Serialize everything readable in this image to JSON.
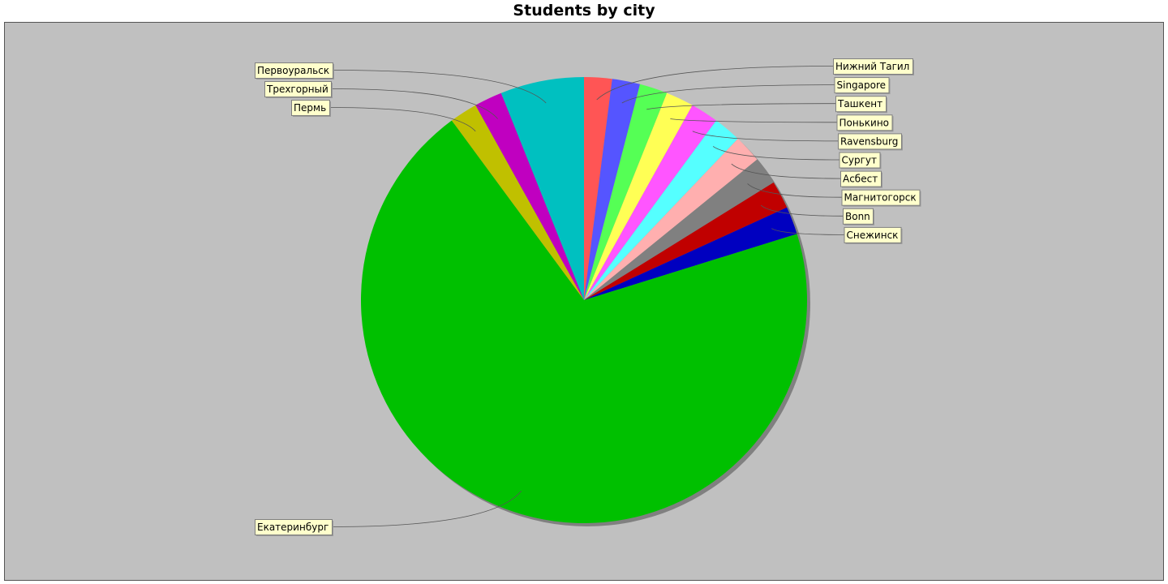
{
  "chart_data": {
    "type": "pie",
    "title": "Students by city",
    "legend": "none",
    "plot_background": "#c0c0c0",
    "label_background": "#ffffcc",
    "slices": [
      {
        "label": "Нижний Тагил",
        "value": 2,
        "color": "#ff5555"
      },
      {
        "label": "Singapore",
        "value": 2,
        "color": "#5555ff"
      },
      {
        "label": "Ташкент",
        "value": 2,
        "color": "#55ff55"
      },
      {
        "label": "Понькино",
        "value": 2,
        "color": "#ffff55"
      },
      {
        "label": "Ravensburg",
        "value": 2,
        "color": "#ff55ff"
      },
      {
        "label": "Сургут",
        "value": 2,
        "color": "#55ffff"
      },
      {
        "label": "Асбест",
        "value": 2,
        "color": "#ffafaf"
      },
      {
        "label": "Магнитогорск",
        "value": 2,
        "color": "#808080"
      },
      {
        "label": "Bonn",
        "value": 2,
        "color": "#c00000"
      },
      {
        "label": "Снежинск",
        "value": 2,
        "color": "#0000c0"
      },
      {
        "label": "Екатеринбург",
        "value": 69,
        "color": "#00c000"
      },
      {
        "label": "Пермь",
        "value": 2,
        "color": "#c0c000"
      },
      {
        "label": "Трехгорный",
        "value": 2,
        "color": "#c000c0"
      },
      {
        "label": "Первоуральск",
        "value": 6,
        "color": "#00c0c0"
      }
    ]
  }
}
